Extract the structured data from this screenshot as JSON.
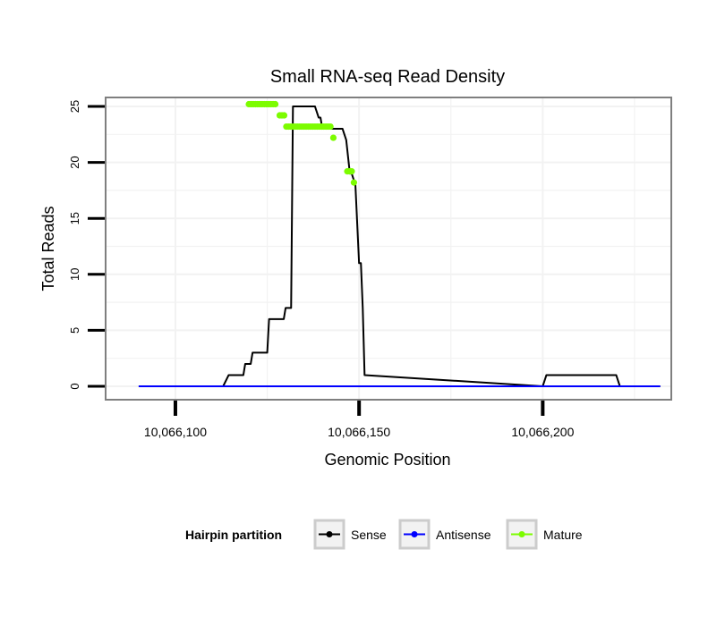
{
  "chart_data": {
    "type": "line",
    "title": "Small RNA-seq Read Density",
    "xlabel": "Genomic Position",
    "ylabel": "Total Reads",
    "xlim": [
      10066081,
      10066235
    ],
    "ylim": [
      -1.2,
      25.8
    ],
    "x_ticks": [
      10066100,
      10066150,
      10066200
    ],
    "x_tick_labels": [
      "10,066,100",
      "10,066,150",
      "10,066,200"
    ],
    "y_ticks": [
      0,
      5,
      10,
      15,
      20,
      25
    ],
    "y_tick_labels": [
      "0",
      "5",
      "10",
      "15",
      "20",
      "25"
    ],
    "grid": true,
    "legend": {
      "position": "bottom",
      "title": "Hairpin partition",
      "entries": [
        "Sense",
        "Antisense",
        "Mature"
      ]
    },
    "series": [
      {
        "name": "Sense",
        "color": "#000000",
        "x": [
          10066090,
          10066113,
          10066114.5,
          10066114.5,
          10066115.5,
          10066115.5,
          10066117,
          10066117.5,
          10066118.5,
          10066119,
          10066120.5,
          10066121,
          10066122.5,
          10066123,
          10066125,
          10066125.5,
          10066129.5,
          10066130,
          10066131.5,
          10066132,
          10066132.5,
          10066133,
          10066137,
          10066138,
          10066139,
          10066139.5,
          10066140,
          10066141,
          10066142,
          10066143,
          10066144,
          10066144.5,
          10066145.5,
          10066146.5,
          10066147.5,
          10066148,
          10066149,
          10066150,
          10066150.5,
          10066151,
          10066151.5,
          10066200,
          10066201,
          10066220,
          10066221,
          10066232
        ],
        "y": [
          0,
          0,
          1,
          1,
          1,
          1,
          1,
          1,
          1,
          2,
          2,
          3,
          3,
          3,
          3,
          6,
          6,
          7,
          7,
          25,
          25,
          25,
          25,
          25,
          24,
          24,
          23,
          23,
          23,
          23,
          23,
          23,
          23,
          22,
          19,
          19,
          18,
          11,
          11,
          7,
          1,
          0,
          1,
          1,
          0,
          0
        ]
      },
      {
        "name": "Antisense",
        "color": "#0000ff",
        "x": [
          10066090,
          10066232
        ],
        "y": [
          0,
          0
        ]
      },
      {
        "name": "Mature",
        "color": "#7cfc00",
        "x": [
          10066120,
          10066120.6,
          10066121.2,
          10066121.8,
          10066122.4,
          10066123,
          10066123.6,
          10066124.2,
          10066124.8,
          10066125.4,
          10066126,
          10066126.6,
          10066127.2,
          10066128.4,
          10066129,
          10066129.6,
          10066130.2,
          10066130.8,
          10066131.4,
          10066132,
          10066132.6,
          10066133.2,
          10066133.8,
          10066134.4,
          10066135,
          10066135.6,
          10066136.2,
          10066136.8,
          10066137.4,
          10066138,
          10066138.6,
          10066139.2,
          10066139.8,
          10066140.4,
          10066141,
          10066141.6,
          10066142.2,
          10066143,
          10066146.8,
          10066147.4,
          10066148,
          10066148.6
        ],
        "y": [
          25.2,
          25.2,
          25.2,
          25.2,
          25.2,
          25.2,
          25.2,
          25.2,
          25.2,
          25.2,
          25.2,
          25.2,
          25.2,
          24.2,
          24.2,
          24.2,
          23.2,
          23.2,
          23.2,
          23.2,
          23.2,
          23.2,
          23.2,
          23.2,
          23.2,
          23.2,
          23.2,
          23.2,
          23.2,
          23.2,
          23.2,
          23.2,
          23.2,
          23.2,
          23.2,
          23.2,
          23.2,
          22.2,
          19.2,
          19.2,
          19.2,
          18.2
        ]
      }
    ]
  }
}
